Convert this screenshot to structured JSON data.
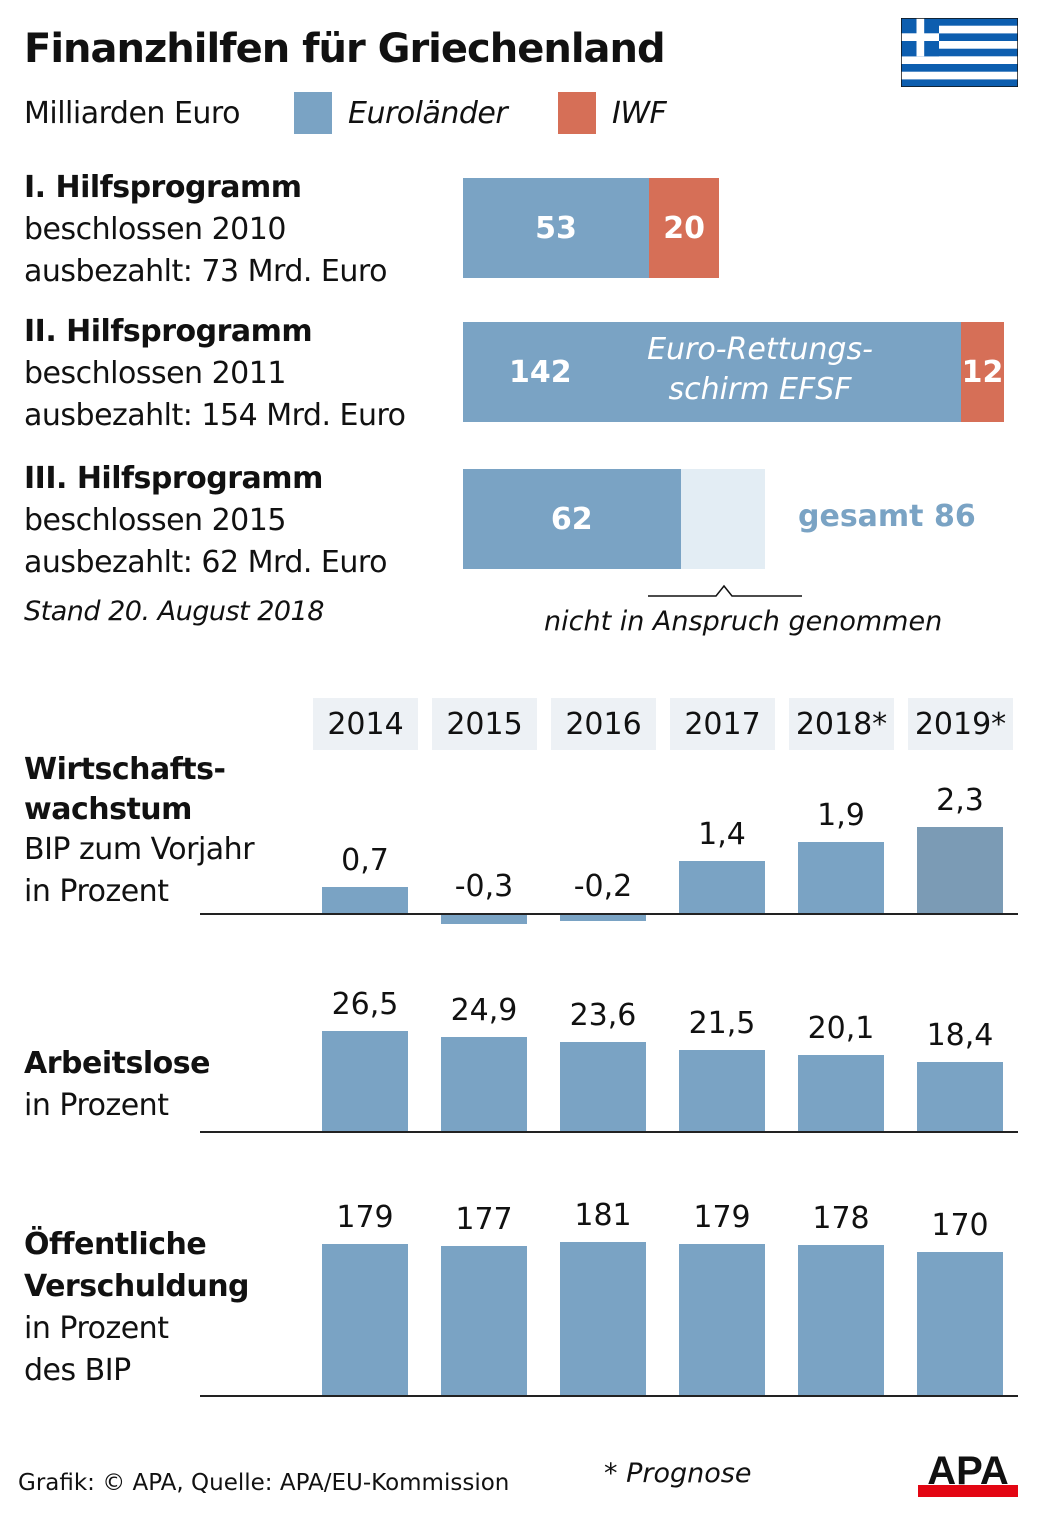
{
  "title": "Finanzhilfen für Griechenland",
  "unit": "Milliarden Euro",
  "legend": [
    {
      "name": "Euroländer",
      "color": "#7aa3c4"
    },
    {
      "name": "IWF",
      "color": "#d66f57"
    }
  ],
  "flag": "greece-flag",
  "programs": [
    {
      "name": "I. Hilfsprogramm",
      "line1": "beschlossen 2010",
      "line2": "ausbezahlt: 73 Mrd. Euro",
      "euro": 53,
      "iwf": 20,
      "euro_label": "53",
      "iwf_label": "20"
    },
    {
      "name": "II. Hilfsprogramm",
      "line1": "beschlossen 2011",
      "line2": "ausbezahlt: 154 Mrd. Euro",
      "euro": 142,
      "iwf": 12,
      "euro_label": "142",
      "iwf_label": "12",
      "note": "Euro-Rettungs-",
      "note2": "schirm EFSF"
    },
    {
      "name": "III. Hilfsprogramm",
      "line1": "beschlossen 2015",
      "line2": "ausbezahlt: 62 Mrd. Euro",
      "euro": 62,
      "total": 86,
      "euro_label": "62",
      "total_label": "gesamt 86",
      "unused_label": "nicht in Anspruch genommen"
    }
  ],
  "stand": "Stand 20. August 2018",
  "chart_data": [
    {
      "type": "bar",
      "title": "Wirtschafts-",
      "title2": "wachstum",
      "subtitle": "BIP zum Vorjahr",
      "subtitle2": "in Prozent",
      "categories": [
        "2014",
        "2015",
        "2016",
        "2017",
        "2018*",
        "2019*"
      ],
      "values": [
        0.7,
        -0.3,
        -0.2,
        1.4,
        1.9,
        2.3
      ],
      "labels": [
        "0,7",
        "-0,3",
        "-0,2",
        "1,4",
        "1,9",
        "2,3"
      ]
    },
    {
      "type": "bar",
      "title": "Arbeitslose",
      "subtitle": "in Prozent",
      "categories": [
        "2014",
        "2015",
        "2016",
        "2017",
        "2018*",
        "2019*"
      ],
      "values": [
        26.5,
        24.9,
        23.6,
        21.5,
        20.1,
        18.4
      ],
      "labels": [
        "26,5",
        "24,9",
        "23,6",
        "21,5",
        "20,1",
        "18,4"
      ]
    },
    {
      "type": "bar",
      "title": "Öffentliche",
      "title2": "Verschuldung",
      "subtitle": "in Prozent",
      "subtitle2": "des BIP",
      "categories": [
        "2014",
        "2015",
        "2016",
        "2017",
        "2018*",
        "2019*"
      ],
      "values": [
        179,
        177,
        181,
        179,
        178,
        170
      ],
      "labels": [
        "179",
        "177",
        "181",
        "179",
        "178",
        "170"
      ]
    }
  ],
  "footnote": "* Prognose",
  "source": "Grafik: © APA, Quelle: APA/EU-Kommission",
  "logo": "APA"
}
